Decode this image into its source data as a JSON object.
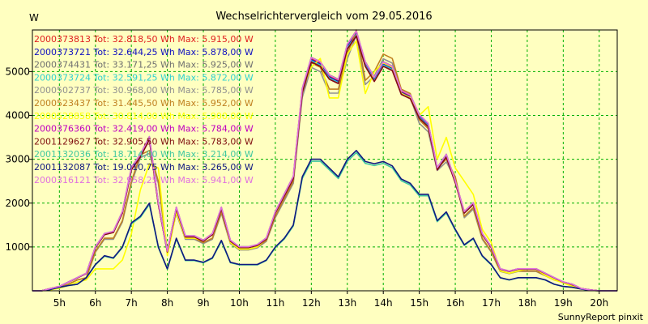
{
  "chart_data": {
    "type": "line",
    "title": "Wechselrichtervergleich vom 29.05.2016",
    "ylabel": "W",
    "credit": "SunnyReport pinxit",
    "ylim": [
      0,
      5950
    ],
    "xlim": [
      4.25,
      20.5
    ],
    "yticks": [
      1000,
      2000,
      3000,
      4000,
      5000
    ],
    "xticks": [
      "5h",
      "6h",
      "7h",
      "8h",
      "9h",
      "10h",
      "11h",
      "12h",
      "13h",
      "14h",
      "15h",
      "16h",
      "17h",
      "18h",
      "19h",
      "20h"
    ],
    "grid": true,
    "legend_position": "top-left",
    "x": [
      4.25,
      4.5,
      4.75,
      5.0,
      5.25,
      5.5,
      5.75,
      6.0,
      6.25,
      6.5,
      6.75,
      7.0,
      7.25,
      7.5,
      7.75,
      8.0,
      8.25,
      8.5,
      8.75,
      9.0,
      9.25,
      9.5,
      9.75,
      10.0,
      10.25,
      10.5,
      10.75,
      11.0,
      11.25,
      11.5,
      11.75,
      12.0,
      12.25,
      12.5,
      12.75,
      13.0,
      13.25,
      13.5,
      13.75,
      14.0,
      14.25,
      14.5,
      14.75,
      15.0,
      15.25,
      15.5,
      15.75,
      16.0,
      16.25,
      16.5,
      16.75,
      17.0,
      17.25,
      17.5,
      17.75,
      18.0,
      18.25,
      18.5,
      18.75,
      19.0,
      19.25,
      19.5,
      19.75,
      20.0,
      20.25,
      20.5
    ],
    "series": [
      {
        "legend": "2000373813 Tot: 32.818,50 Wh Max: 5.915,00 W",
        "color": "#e02020",
        "group": "A",
        "scale": 1.0
      },
      {
        "legend": "2000373721 Tot: 32.644,25 Wh Max: 5.878,00 W",
        "color": "#1010c0",
        "group": "A",
        "scale": 0.994
      },
      {
        "legend": "2000374431 Tot: 33.171,25 Wh Max: 5.925,00 W",
        "color": "#707070",
        "group": "A",
        "scale": 1.005
      },
      {
        "legend": "2000373724 Tot: 32.591,25 Wh Max: 5.872,00 W",
        "color": "#30d0d0",
        "group": "A",
        "scale": 0.99
      },
      {
        "legend": "2000502737 Tot: 30.968,00 Wh Max: 5.785,00 W",
        "color": "#909090",
        "group": "B",
        "scale": 0.98
      },
      {
        "legend": "2000523437 Tot: 31.445,50 Wh Max: 5.952,00 W",
        "color": "#c08020",
        "group": "B",
        "scale": 1.0
      },
      {
        "legend": "2000528858 Tot: 30.814,00 Wh Max: 5.900,00 W",
        "color": "#ffff00",
        "group": "C",
        "scale": 1.0
      },
      {
        "legend": "2000376360 Tot: 32.419,00 Wh Max: 5.784,00 W",
        "color": "#c000c0",
        "group": "A",
        "scale": 0.985
      },
      {
        "legend": "2001129627 Tot: 32.905,50 Wh Max: 5.783,00 W",
        "color": "#801010",
        "group": "A",
        "scale": 0.985
      },
      {
        "legend": "2001132036 Tot: 18.714,00 Wh Max: 3.214,00 W",
        "color": "#40c8a0",
        "group": "D",
        "scale": 0.985
      },
      {
        "legend": "2001132087 Tot: 19.010,75 Wh Max: 3.265,00 W",
        "color": "#101880",
        "group": "D",
        "scale": 1.0
      },
      {
        "legend": "2000316121 Tot: 32.958,25 Wh Max: 5.941,00 W",
        "color": "#e070e0",
        "group": "A",
        "scale": 1.004
      }
    ],
    "profiles": {
      "A": [
        0,
        0,
        50,
        100,
        200,
        300,
        400,
        1000,
        1300,
        1350,
        1800,
        2800,
        3100,
        3500,
        2000,
        900,
        1900,
        1250,
        1250,
        1150,
        1300,
        1900,
        1150,
        1000,
        1000,
        1050,
        1200,
        1800,
        2200,
        2600,
        4600,
        5300,
        5200,
        4900,
        4800,
        5600,
        5900,
        5200,
        4850,
        5200,
        5100,
        4550,
        4450,
        4000,
        3800,
        2800,
        3100,
        2500,
        1800,
        2000,
        1300,
        1000,
        500,
        450,
        500,
        500,
        500,
        400,
        300,
        200,
        150,
        50,
        20,
        0,
        0,
        0
      ],
      "B": [
        0,
        0,
        30,
        80,
        150,
        250,
        300,
        900,
        1200,
        1200,
        1600,
        2500,
        3100,
        3200,
        2500,
        900,
        1800,
        1200,
        1200,
        1100,
        1200,
        1800,
        1100,
        950,
        950,
        1000,
        1150,
        1700,
        2100,
        2500,
        4500,
        5200,
        5100,
        4600,
        4600,
        5400,
        5950,
        4800,
        5000,
        5400,
        5300,
        4600,
        4500,
        3900,
        3700,
        2800,
        3000,
        2600,
        1700,
        1900,
        1200,
        900,
        450,
        400,
        450,
        450,
        450,
        350,
        250,
        200,
        120,
        50,
        10,
        0,
        0,
        0
      ],
      "C": [
        0,
        0,
        20,
        60,
        120,
        200,
        250,
        500,
        500,
        500,
        700,
        1300,
        2300,
        2900,
        2800,
        800,
        1800,
        1200,
        1200,
        1150,
        1300,
        1900,
        1100,
        950,
        950,
        1000,
        1200,
        1800,
        2200,
        2600,
        4600,
        5100,
        5300,
        4400,
        4400,
        5400,
        5700,
        4500,
        5000,
        5200,
        5100,
        4500,
        4400,
        4000,
        4200,
        3000,
        3500,
        2800,
        2500,
        2200,
        1400,
        1100,
        450,
        400,
        450,
        500,
        500,
        350,
        250,
        180,
        100,
        50,
        10,
        0,
        0,
        0
      ],
      "D": [
        0,
        0,
        30,
        80,
        120,
        150,
        300,
        600,
        800,
        750,
        1000,
        1550,
        1700,
        2000,
        1000,
        500,
        1200,
        700,
        700,
        650,
        750,
        1150,
        650,
        600,
        600,
        600,
        700,
        1000,
        1200,
        1500,
        2600,
        3000,
        3000,
        2800,
        2600,
        3000,
        3200,
        2950,
        2900,
        2950,
        2850,
        2550,
        2450,
        2200,
        2200,
        1600,
        1800,
        1400,
        1050,
        1200,
        800,
        600,
        300,
        250,
        300,
        300,
        300,
        250,
        150,
        100,
        80,
        40,
        10,
        0,
        0,
        0
      ]
    }
  }
}
